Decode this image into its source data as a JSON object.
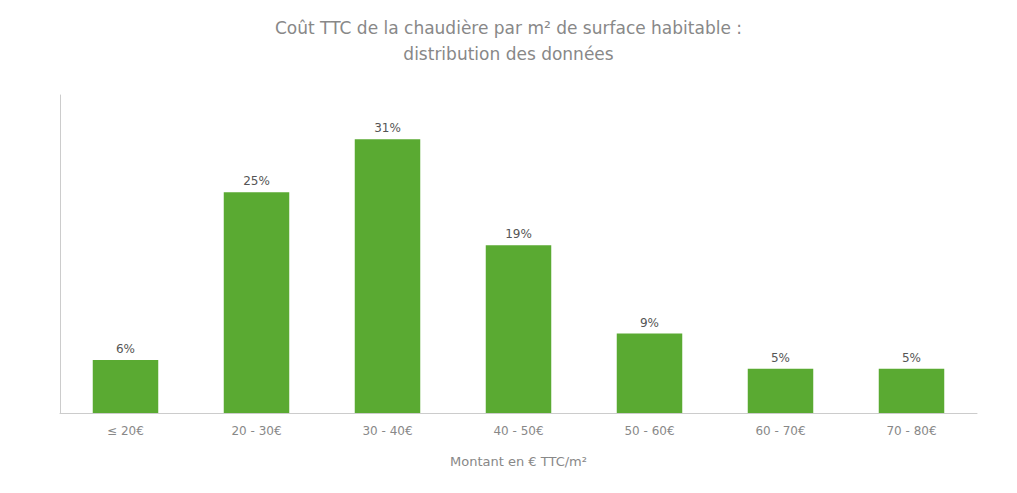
{
  "chart_data": {
    "type": "bar",
    "title": "Coût TTC de la chaudière par m² de surface habitable :\ndistribution des données",
    "categories": [
      "≤ 20€",
      "20 - 30€",
      "30 - 40€",
      "40 - 50€",
      "50 - 60€",
      "60 - 70€",
      "70 - 80€"
    ],
    "values": [
      6,
      25,
      31,
      19,
      9,
      5,
      5
    ],
    "value_labels": [
      "6%",
      "25%",
      "31%",
      "19%",
      "9%",
      "5%",
      "5%"
    ],
    "data_labels": true,
    "color": "#5aaa32",
    "xlabel": "Montant en € TTC/m²",
    "ylim": [
      0,
      36
    ],
    "tick_labels": "x",
    "grid": false
  }
}
